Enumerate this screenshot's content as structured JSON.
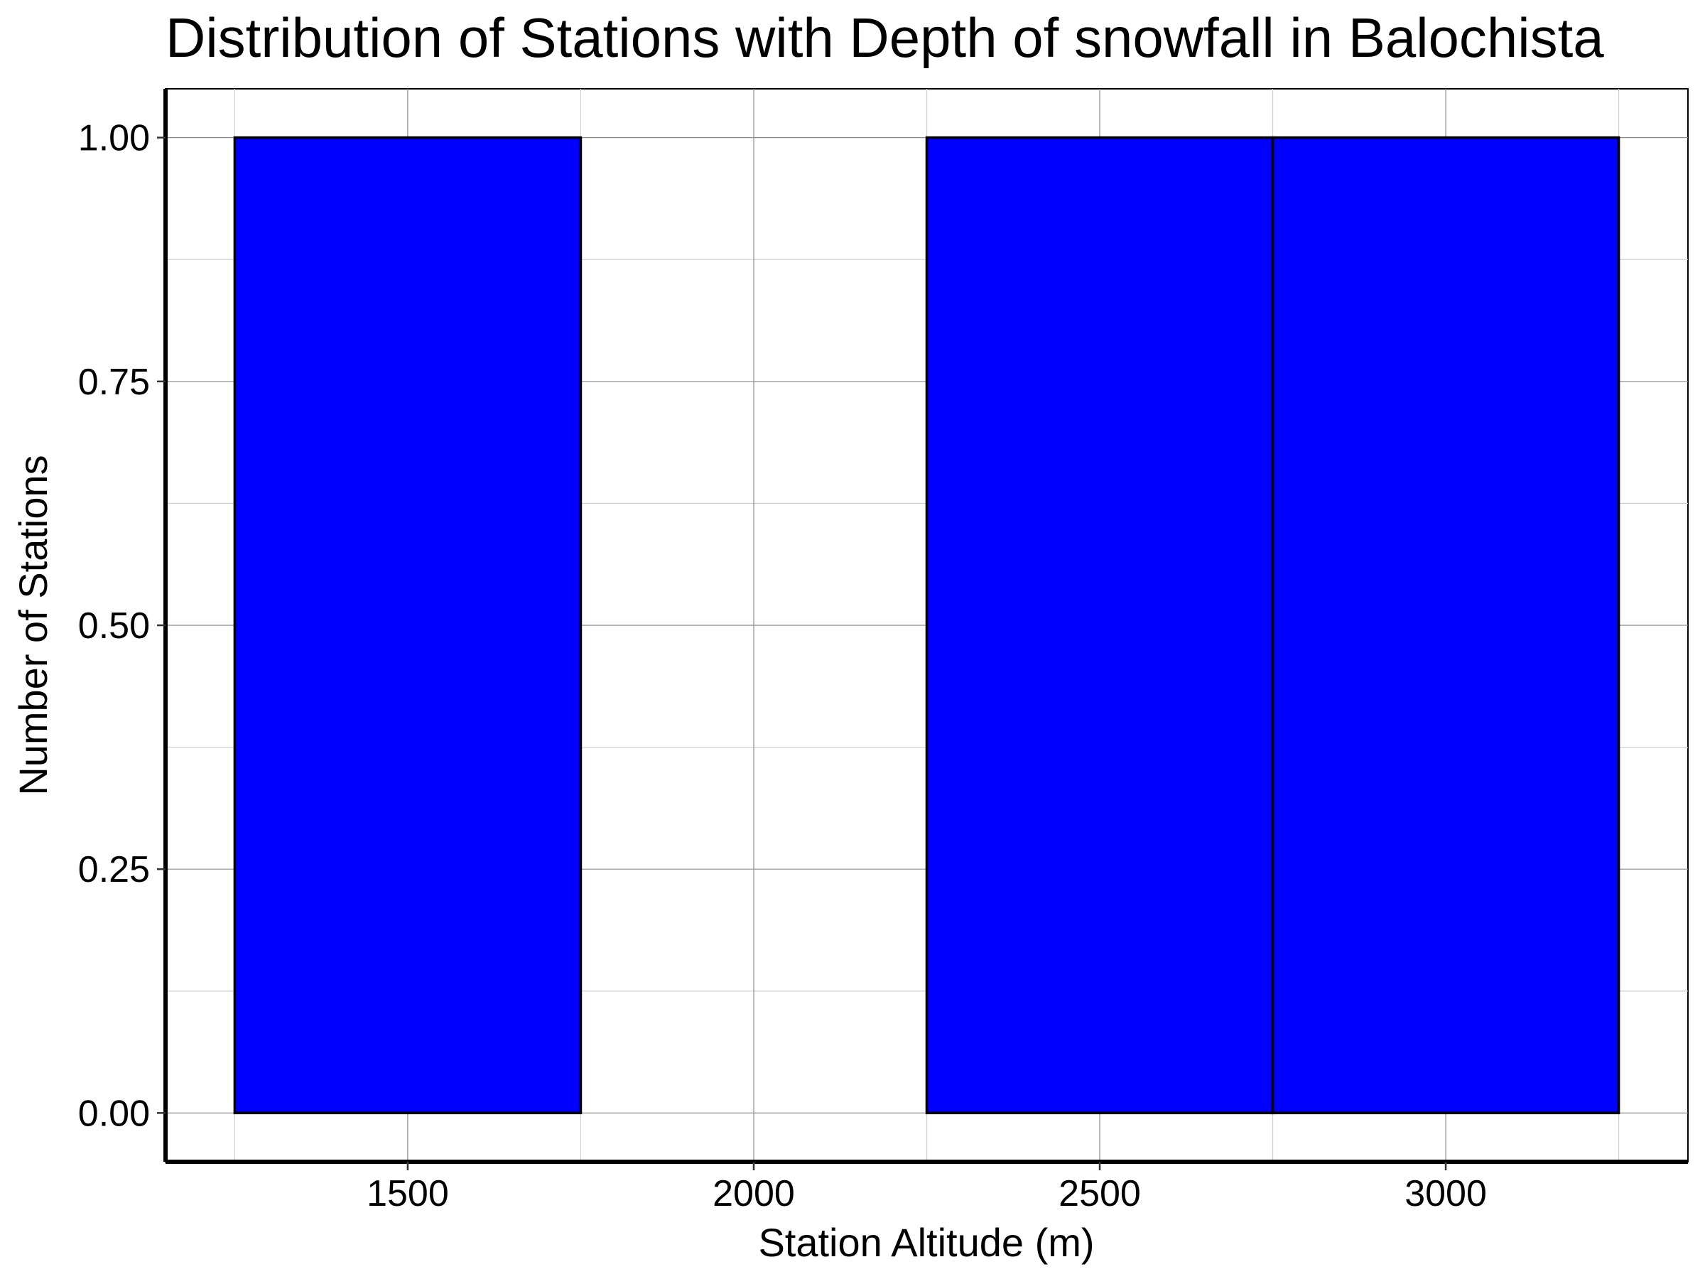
{
  "chart_data": {
    "type": "bar",
    "title": "Distribution of Stations with Depth of snowfall in Balochista",
    "xlabel": "Station Altitude (m)",
    "ylabel": "Number of Stations",
    "bin_edges": [
      1250,
      1750,
      2250,
      2750,
      3250
    ],
    "values": [
      1,
      0,
      1,
      1
    ],
    "xlim": [
      1150,
      3350
    ],
    "ylim": [
      -0.05,
      1.05
    ],
    "x_ticks": [
      1500,
      2000,
      2500,
      3000
    ],
    "x_tick_labels": [
      "1500",
      "2000",
      "2500",
      "3000"
    ],
    "y_ticks": [
      0,
      0.25,
      0.5,
      0.75,
      1
    ],
    "y_tick_labels": [
      "0.00",
      "0.25",
      "0.50",
      "0.75",
      "1.00"
    ],
    "bar_color": "#0000ff",
    "bar_edge_color": "#000000",
    "grid": true,
    "legend": "none"
  }
}
